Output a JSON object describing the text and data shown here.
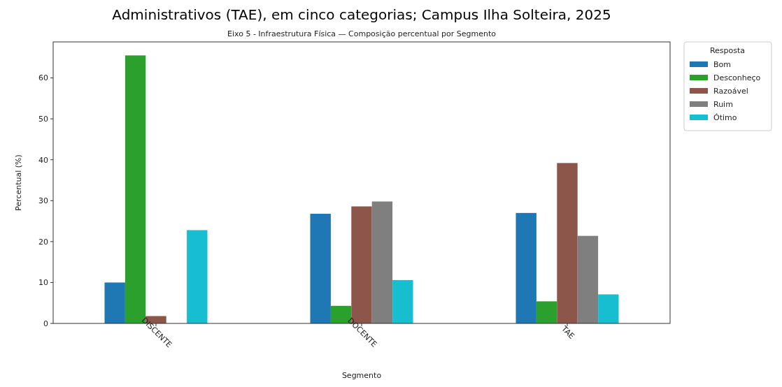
{
  "chart_data": {
    "type": "bar",
    "title": "Eixo 5 - Infraestrutura Física — Composição percentual por Segmento",
    "subtitle": "Administrativos (TAE), em cinco categorias; Campus Ilha Solteira, 2025",
    "xlabel": "Segmento",
    "ylabel": "Percentual (%)",
    "legend_title": "Resposta",
    "categories": [
      "DISCENTE",
      "DOCENTE",
      "TAE"
    ],
    "series": [
      {
        "name": "Bom",
        "color": "#1f77b4",
        "values": [
          10.0,
          26.8,
          27.0
        ]
      },
      {
        "name": "Desconheço",
        "color": "#2ca02c",
        "values": [
          65.5,
          4.3,
          5.4
        ]
      },
      {
        "name": "Razoável",
        "color": "#8c564b",
        "values": [
          1.8,
          28.6,
          39.2
        ]
      },
      {
        "name": "Ruim",
        "color": "#7f7f7f",
        "values": [
          0,
          29.8,
          21.4
        ]
      },
      {
        "name": "Ótimo",
        "color": "#17becf",
        "values": [
          22.8,
          10.6,
          7.1
        ]
      }
    ],
    "ylim": [
      0,
      68.8
    ],
    "yticks": [
      0,
      10,
      20,
      30,
      40,
      50,
      60
    ],
    "grid": false,
    "legend": "top right"
  }
}
